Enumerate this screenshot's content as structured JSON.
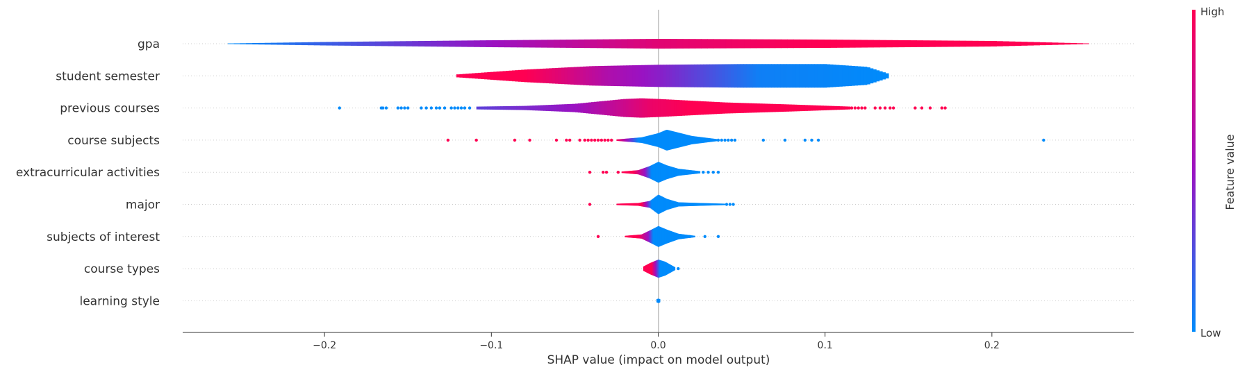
{
  "chart_data": {
    "type": "violin",
    "xlabel": "SHAP value (impact on model output)",
    "xlim": [
      -0.285,
      0.285
    ],
    "ticks": [
      -0.2,
      -0.1,
      0.0,
      0.1,
      0.2
    ],
    "tick_labels": [
      "−0.2",
      "−0.1",
      "0.0",
      "0.1",
      "0.2"
    ],
    "colorbar": {
      "label": "Feature value",
      "high": "High",
      "low": "Low",
      "high_color": "#ff0052",
      "low_color": "#008bfb"
    },
    "features": [
      {
        "name": "gpa",
        "min": -0.258,
        "max": 0.258,
        "profile": [
          [
            -0.258,
            0.4
          ],
          [
            -0.2,
            2.5
          ],
          [
            -0.1,
            5
          ],
          [
            0,
            7
          ],
          [
            0.1,
            6
          ],
          [
            0.2,
            4
          ],
          [
            0.258,
            0.4
          ]
        ],
        "color": [
          [
            -0.258,
            0
          ],
          [
            -0.1,
            0.5
          ],
          [
            0,
            0.85
          ],
          [
            0.1,
            1
          ],
          [
            0.258,
            1
          ]
        ],
        "dots": []
      },
      {
        "name": "student semester",
        "min": -0.121,
        "max": 0.138,
        "profile": [
          [
            -0.121,
            2
          ],
          [
            -0.08,
            9
          ],
          [
            -0.04,
            14
          ],
          [
            0,
            16
          ],
          [
            0.05,
            17
          ],
          [
            0.1,
            17
          ],
          [
            0.125,
            13
          ],
          [
            0.138,
            3
          ]
        ],
        "color": [
          [
            -0.121,
            1
          ],
          [
            -0.08,
            1
          ],
          [
            -0.06,
            0.85
          ],
          [
            -0.03,
            0.6
          ],
          [
            0,
            0.45
          ],
          [
            0.03,
            0.25
          ],
          [
            0.06,
            0.05
          ],
          [
            0.138,
            0
          ]
        ],
        "dots": []
      },
      {
        "name": "previous courses",
        "min": -0.109,
        "max": 0.115,
        "profile": [
          [
            -0.109,
            2
          ],
          [
            -0.08,
            3
          ],
          [
            -0.05,
            6
          ],
          [
            -0.02,
            13
          ],
          [
            -0.01,
            14
          ],
          [
            0,
            13
          ],
          [
            0.04,
            8
          ],
          [
            0.08,
            5
          ],
          [
            0.115,
            2
          ]
        ],
        "color": [
          [
            -0.109,
            0.3
          ],
          [
            -0.05,
            0.5
          ],
          [
            -0.02,
            0.75
          ],
          [
            -0.005,
            0.9
          ],
          [
            0.02,
            1
          ],
          [
            0.115,
            1
          ]
        ],
        "dots": [
          [
            -0.191,
            0
          ],
          [
            -0.166,
            0
          ],
          [
            -0.165,
            0
          ],
          [
            -0.163,
            0
          ],
          [
            -0.156,
            0
          ],
          [
            -0.154,
            0
          ],
          [
            -0.152,
            0
          ],
          [
            -0.15,
            0
          ],
          [
            -0.142,
            0
          ],
          [
            -0.139,
            0
          ],
          [
            -0.136,
            0
          ],
          [
            -0.133,
            0
          ],
          [
            -0.131,
            0
          ],
          [
            -0.128,
            0
          ],
          [
            -0.124,
            0
          ],
          [
            -0.122,
            0
          ],
          [
            -0.12,
            0
          ],
          [
            -0.118,
            0
          ],
          [
            -0.116,
            0
          ],
          [
            -0.113,
            0
          ],
          [
            0.116,
            1
          ],
          [
            0.118,
            1
          ],
          [
            0.12,
            1
          ],
          [
            0.122,
            1
          ],
          [
            0.124,
            1
          ],
          [
            0.13,
            1
          ],
          [
            0.133,
            1
          ],
          [
            0.136,
            1
          ],
          [
            0.139,
            1
          ],
          [
            0.141,
            1
          ],
          [
            0.154,
            1
          ],
          [
            0.158,
            1
          ],
          [
            0.163,
            1
          ],
          [
            0.17,
            1
          ],
          [
            0.172,
            1
          ]
        ]
      },
      {
        "name": "course subjects",
        "min": -0.025,
        "max": 0.035,
        "profile": [
          [
            -0.025,
            1
          ],
          [
            -0.01,
            4
          ],
          [
            0,
            10
          ],
          [
            0.005,
            15
          ],
          [
            0.01,
            12
          ],
          [
            0.02,
            6
          ],
          [
            0.035,
            1.5
          ]
        ],
        "color": [
          [
            -0.025,
            1
          ],
          [
            -0.02,
            0.6
          ],
          [
            -0.012,
            0
          ],
          [
            0.035,
            0
          ]
        ],
        "dots": [
          [
            -0.126,
            1
          ],
          [
            -0.109,
            1
          ],
          [
            -0.086,
            1
          ],
          [
            -0.077,
            1
          ],
          [
            -0.061,
            1
          ],
          [
            -0.055,
            1
          ],
          [
            -0.053,
            1
          ],
          [
            -0.047,
            1
          ],
          [
            -0.044,
            1
          ],
          [
            -0.042,
            1
          ],
          [
            -0.04,
            1
          ],
          [
            -0.038,
            1
          ],
          [
            -0.036,
            1
          ],
          [
            -0.034,
            1
          ],
          [
            -0.032,
            1
          ],
          [
            -0.03,
            1
          ],
          [
            -0.028,
            1
          ],
          [
            0.036,
            0
          ],
          [
            0.038,
            0
          ],
          [
            0.04,
            0
          ],
          [
            0.042,
            0
          ],
          [
            0.044,
            0
          ],
          [
            0.046,
            0
          ],
          [
            0.063,
            0
          ],
          [
            0.076,
            0
          ],
          [
            0.088,
            0
          ],
          [
            0.092,
            0
          ],
          [
            0.096,
            0
          ],
          [
            0.231,
            0
          ]
        ]
      },
      {
        "name": "extracurricular activities",
        "min": -0.022,
        "max": 0.025,
        "profile": [
          [
            -0.022,
            1
          ],
          [
            -0.012,
            3
          ],
          [
            -0.005,
            9
          ],
          [
            0,
            15
          ],
          [
            0.005,
            10
          ],
          [
            0.012,
            5
          ],
          [
            0.025,
            1.5
          ]
        ],
        "color": [
          [
            -0.022,
            1
          ],
          [
            -0.015,
            1
          ],
          [
            -0.008,
            0.5
          ],
          [
            -0.004,
            0
          ],
          [
            0.025,
            0
          ]
        ],
        "dots": [
          [
            -0.041,
            1
          ],
          [
            -0.033,
            1
          ],
          [
            -0.031,
            1
          ],
          [
            -0.024,
            1
          ],
          [
            0.027,
            0
          ],
          [
            0.03,
            0
          ],
          [
            0.033,
            0
          ],
          [
            0.036,
            0
          ]
        ]
      },
      {
        "name": "major",
        "min": -0.025,
        "max": 0.04,
        "profile": [
          [
            -0.025,
            1
          ],
          [
            -0.012,
            2
          ],
          [
            -0.005,
            5
          ],
          [
            0,
            14
          ],
          [
            0.005,
            8
          ],
          [
            0.012,
            3
          ],
          [
            0.025,
            2
          ],
          [
            0.04,
            1
          ]
        ],
        "color": [
          [
            -0.025,
            1
          ],
          [
            -0.01,
            1
          ],
          [
            -0.004,
            0
          ],
          [
            0.04,
            0
          ]
        ],
        "dots": [
          [
            -0.041,
            1
          ],
          [
            0.041,
            0
          ],
          [
            0.043,
            0
          ],
          [
            0.045,
            0
          ]
        ]
      },
      {
        "name": "subjects of interest",
        "min": -0.02,
        "max": 0.022,
        "profile": [
          [
            -0.02,
            1
          ],
          [
            -0.01,
            3
          ],
          [
            -0.004,
            10
          ],
          [
            0,
            15
          ],
          [
            0.005,
            10
          ],
          [
            0.012,
            4
          ],
          [
            0.022,
            1
          ]
        ],
        "color": [
          [
            -0.02,
            1
          ],
          [
            -0.012,
            1
          ],
          [
            -0.006,
            0.5
          ],
          [
            -0.003,
            0
          ],
          [
            0.022,
            0
          ]
        ],
        "dots": [
          [
            -0.036,
            1
          ],
          [
            0.017,
            0
          ],
          [
            0.019,
            0
          ],
          [
            0.028,
            0
          ],
          [
            0.036,
            0
          ]
        ]
      },
      {
        "name": "course types",
        "min": -0.009,
        "max": 0.01,
        "profile": [
          [
            -0.009,
            3
          ],
          [
            -0.005,
            8
          ],
          [
            0,
            13
          ],
          [
            0.004,
            10
          ],
          [
            0.01,
            2
          ]
        ],
        "color": [
          [
            -0.009,
            1
          ],
          [
            -0.004,
            1
          ],
          [
            -0.001,
            0.4
          ],
          [
            0.001,
            0
          ],
          [
            0.01,
            0
          ]
        ],
        "dots": [
          [
            0.012,
            0
          ]
        ]
      },
      {
        "name": "learning style",
        "min": -0.001,
        "max": 0.001,
        "profile": [
          [
            -0.001,
            2
          ],
          [
            0,
            3
          ],
          [
            0.001,
            2
          ]
        ],
        "color": [
          [
            -0.001,
            0
          ],
          [
            0.001,
            0
          ]
        ],
        "dots": []
      }
    ]
  }
}
